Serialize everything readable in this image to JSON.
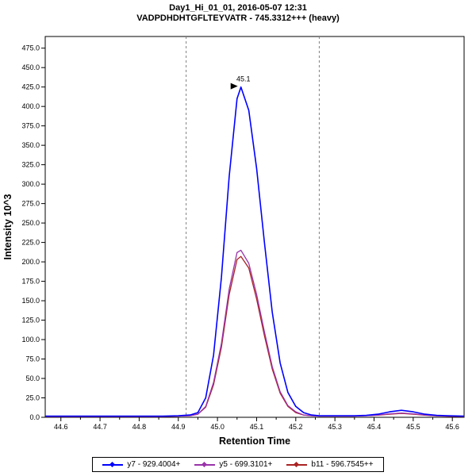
{
  "header": {
    "title": "Day1_Hi_01_01, 2016-05-07 12:31",
    "subtitle": "VADPDHDHTGFLTEYVATR - 745.3312+++ (heavy)"
  },
  "chart_data": {
    "type": "line",
    "title": "Day1_Hi_01_01, 2016-05-07 12:31",
    "subtitle": "VADPDHDHTGFLTEYVATR - 745.3312+++ (heavy)",
    "xlabel": "Retention Time",
    "ylabel": "Intensity 10^3",
    "xlim": [
      44.56,
      45.63
    ],
    "ylim": [
      0,
      490
    ],
    "xticks": [
      44.6,
      44.7,
      44.8,
      44.9,
      45.0,
      45.1,
      45.2,
      45.3,
      45.4,
      45.5,
      45.6
    ],
    "yticks": [
      0,
      25,
      50,
      75,
      100,
      125,
      150,
      175,
      200,
      225,
      250,
      275,
      300,
      325,
      350,
      375,
      400,
      425,
      450,
      475
    ],
    "grid": false,
    "legend_position": "bottom",
    "integration_boundaries": [
      44.92,
      45.26
    ],
    "boundary_color": "#808080",
    "annotation": {
      "text": "45.1",
      "x": 45.06,
      "y": 425
    },
    "x": [
      44.56,
      44.62,
      44.66,
      44.7,
      44.74,
      44.78,
      44.82,
      44.86,
      44.9,
      44.93,
      44.95,
      44.97,
      44.99,
      45.01,
      45.03,
      45.05,
      45.06,
      45.08,
      45.1,
      45.12,
      45.14,
      45.16,
      45.18,
      45.2,
      45.22,
      45.24,
      45.26,
      45.29,
      45.32,
      45.35,
      45.38,
      45.41,
      45.44,
      45.47,
      45.5,
      45.53,
      45.56,
      45.59,
      45.63
    ],
    "series": [
      {
        "name": "y7 - 929.4004+",
        "color": "#0000ff",
        "values": [
          1.5,
          1.5,
          1.5,
          1.5,
          1.5,
          1.5,
          1.5,
          1.5,
          2,
          3,
          6,
          25,
          80,
          180,
          310,
          410,
          425,
          395,
          320,
          225,
          135,
          70,
          32,
          14,
          6,
          3,
          2,
          2,
          2,
          2,
          2.5,
          4,
          7,
          9,
          7,
          4,
          2.5,
          2,
          1.5
        ]
      },
      {
        "name": "y5 - 699.3101+",
        "color": "#9933aa",
        "values": [
          1,
          1,
          1,
          1,
          1,
          1,
          1,
          1,
          1.5,
          2,
          4,
          14,
          45,
          95,
          165,
          212,
          215,
          198,
          158,
          110,
          65,
          33,
          15,
          7,
          3,
          2,
          1.5,
          1.5,
          1.5,
          1.5,
          2,
          3,
          4.5,
          5.5,
          4.5,
          3,
          2,
          1.5,
          1
        ]
      },
      {
        "name": "b11 - 596.7545++",
        "color": "#aa2222",
        "values": [
          1,
          1,
          1,
          1,
          1,
          1,
          1,
          1,
          1.5,
          2,
          4,
          13,
          42,
          90,
          158,
          203,
          207,
          192,
          152,
          105,
          62,
          31,
          14,
          6,
          3,
          2,
          1.5,
          1.5,
          1.5,
          1.5,
          2,
          2.8,
          4,
          5,
          4,
          2.8,
          1.8,
          1.3,
          1
        ]
      }
    ]
  }
}
